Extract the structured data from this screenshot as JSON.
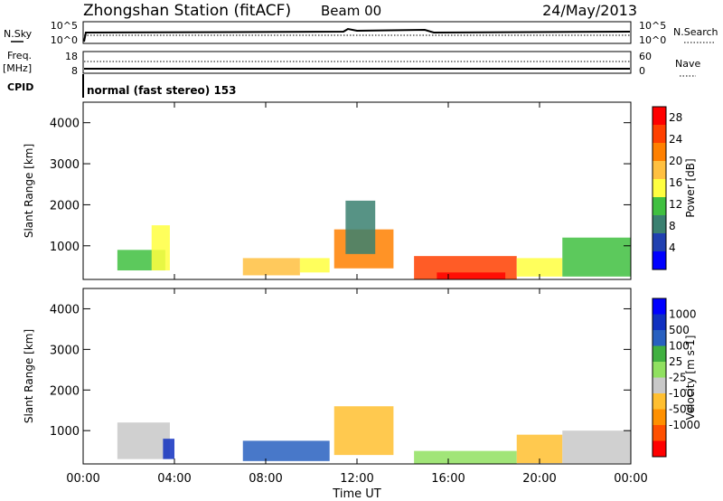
{
  "header": {
    "station": "Zhongshan Station (fitACF)",
    "beam": "Beam 00",
    "date": "24/May/2013"
  },
  "params": {
    "nsky_label": "N.Sky",
    "nsearch_label": "N.Search",
    "nave_label": "Nave",
    "freq_label_1": "Freq.",
    "freq_label_2": "[MHz]",
    "cpid_label": "CPID",
    "mode_text": "normal (fast stereo) 153",
    "left_top_ticks": [
      "10^5",
      "10^0"
    ],
    "right_top_ticks": [
      "10^5",
      "10^0"
    ],
    "freq_ticks": [
      "18",
      "8"
    ],
    "nave_ticks": [
      "60",
      "0"
    ]
  },
  "colors": {
    "power": [
      "#0000ff",
      "#2040b0",
      "#3a8070",
      "#40c040",
      "#ffff40",
      "#ffc040",
      "#ff8000",
      "#ff4000",
      "#ff0000"
    ],
    "velocity": [
      "#ff0000",
      "#ff5000",
      "#ff9000",
      "#ffbf30",
      "#c8c8c8",
      "#90e060",
      "#40b040",
      "#2860c0",
      "#1030c0",
      "#0000ff"
    ],
    "groundscatter": "#c8c8c8"
  },
  "chart_data": [
    {
      "type": "heatmap",
      "title": "Power",
      "xlabel": "Time UT",
      "ylabel": "Slant Range [km]",
      "x_ticks": [
        "00:00",
        "04:00",
        "08:00",
        "12:00",
        "16:00",
        "20:00",
        "00:00"
      ],
      "y_ticks": [
        "1000",
        "2000",
        "3000",
        "4000"
      ],
      "xlim_hours": [
        0,
        24
      ],
      "ylim_km": [
        180,
        4500
      ],
      "colorbar": {
        "label": "Power [dB]",
        "ticks": [
          "4",
          "8",
          "12",
          "16",
          "20",
          "24",
          "28"
        ],
        "range": [
          0,
          30
        ]
      },
      "patches": [
        {
          "t0": 1.5,
          "t1": 3.6,
          "r0": 400,
          "r1": 900,
          "power": 10
        },
        {
          "t0": 3.0,
          "t1": 3.8,
          "r0": 400,
          "r1": 1500,
          "power": 16
        },
        {
          "t0": 7.0,
          "t1": 9.5,
          "r0": 280,
          "r1": 700,
          "power": 17
        },
        {
          "t0": 9.5,
          "t1": 10.8,
          "r0": 350,
          "r1": 700,
          "power": 14
        },
        {
          "t0": 11.0,
          "t1": 13.6,
          "r0": 450,
          "r1": 1400,
          "power": 20
        },
        {
          "t0": 11.5,
          "t1": 12.8,
          "r0": 800,
          "r1": 2100,
          "power": 8
        },
        {
          "t0": 14.5,
          "t1": 19.0,
          "r0": 180,
          "r1": 750,
          "power": 24
        },
        {
          "t0": 15.5,
          "t1": 18.5,
          "r0": 180,
          "r1": 350,
          "power": 29
        },
        {
          "t0": 19.0,
          "t1": 21.0,
          "r0": 250,
          "r1": 700,
          "power": 14
        },
        {
          "t0": 21.0,
          "t1": 24.0,
          "r0": 250,
          "r1": 1200,
          "power": 12
        }
      ]
    },
    {
      "type": "heatmap",
      "title": "Velocity",
      "xlabel": "Time UT",
      "ylabel": "Slant Range [km]",
      "x_ticks": [
        "00:00",
        "04:00",
        "08:00",
        "12:00",
        "16:00",
        "20:00",
        "00:00"
      ],
      "y_ticks": [
        "1000",
        "2000",
        "3000",
        "4000"
      ],
      "xlim_hours": [
        0,
        24
      ],
      "ylim_km": [
        180,
        4500
      ],
      "colorbar": {
        "label": "Velocity [m s-1]",
        "ticks": [
          "1000",
          "500",
          "100",
          "25",
          "-25",
          "-100",
          "-500",
          "-1000"
        ],
        "range": [
          -1200,
          1200
        ]
      },
      "patches": [
        {
          "t0": 1.5,
          "t1": 3.8,
          "r0": 300,
          "r1": 1200,
          "velocity": -200
        },
        {
          "t0": 3.5,
          "t1": 4.0,
          "r0": 300,
          "r1": 800,
          "velocity": 800
        },
        {
          "t0": 7.0,
          "t1": 10.8,
          "r0": 250,
          "r1": 750,
          "velocity": 600
        },
        {
          "t0": 11.0,
          "t1": 13.6,
          "r0": 400,
          "r1": 1600,
          "velocity": -300
        },
        {
          "t0": 14.5,
          "t1": 19.0,
          "r0": 180,
          "r1": 500,
          "velocity": 0
        },
        {
          "t0": 19.0,
          "t1": 21.0,
          "r0": 200,
          "r1": 900,
          "velocity": -300
        },
        {
          "t0": 21.0,
          "t1": 24.0,
          "r0": 200,
          "r1": 1000,
          "velocity": -200
        }
      ]
    }
  ]
}
